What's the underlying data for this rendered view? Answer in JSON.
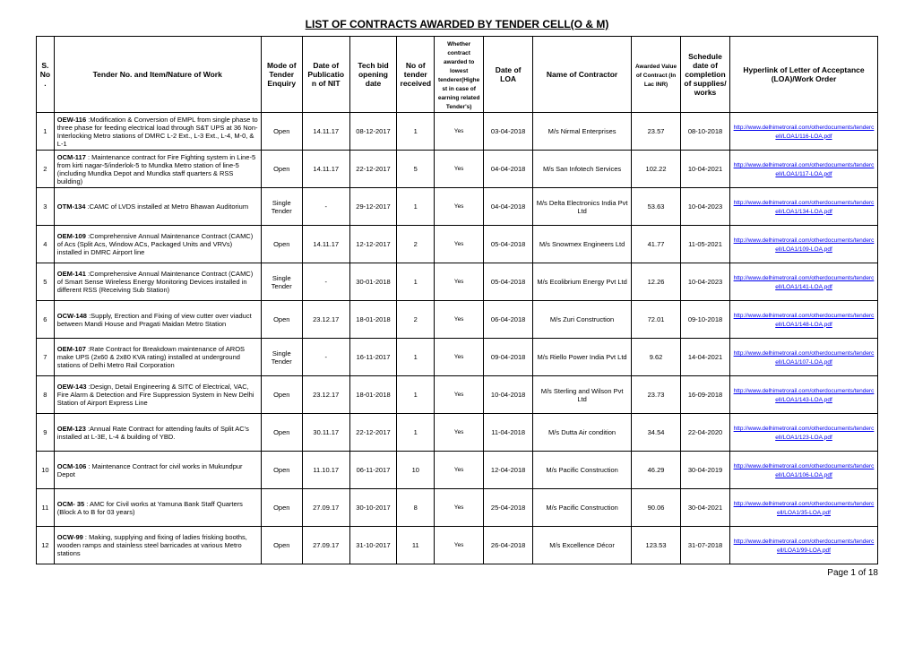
{
  "title": "LIST OF CONTRACTS AWARDED BY TENDER CELL(O & M)",
  "footer": "Page 1 of 18",
  "columns": {
    "sno": "S.No.",
    "desc": "Tender No. and Item/Nature of Work",
    "mode": "Mode of Tender Enquiry",
    "pubnit": "Date of Publication of NIT",
    "bid": "Tech bid opening date",
    "no": "No of tender received",
    "awarded": "Whether contract awarded to lowest tenderer(Highest in case of earning related Tender's)",
    "loa": "Date of LOA",
    "contractor": "Name of Contractor",
    "value": "Awarded Value of Contract (In Lac INR)",
    "sched": "Schedule date of completion of supplies/ works",
    "link": "Hyperlink of Letter of Acceptance (LOA)/Work Order"
  },
  "link_base": "http://www.delhimetrorail.com/otherdocuments/tendercell/LOA1/",
  "rows": [
    {
      "sno": "1",
      "desc_bold": "OEW-116",
      "desc": " :Modification & Conversion of EMPL from single phase to three phase for feeding electrical load through S&T UPS at 36 Non-Interlocking Metro stations of DMRC L-2 Ext., L-3 Ext., L-4, M-0, & L-1",
      "mode": "Open",
      "pubnit": "14.11.17",
      "bid": "08-12-2017",
      "no": "1",
      "awarded": "Yes",
      "loa": "03-04-2018",
      "contractor": "M/s Nirmal Enterprises",
      "value": "23.57",
      "sched": "08-10-2018",
      "link": "116-LOA.pdf"
    },
    {
      "sno": "2",
      "desc_bold": "OCM-117",
      "desc": " : Maintenance contract for Fire Fighting system in Line-5 from kirti nagar-5/inderlok-5 to Mundka Metro station of line-5 (including Mundka Depot and Mundka staff quarters & RSS building)",
      "mode": "Open",
      "pubnit": "14.11.17",
      "bid": "22-12-2017",
      "no": "5",
      "awarded": "Yes",
      "loa": "04-04-2018",
      "contractor": "M/s San Infotech Services",
      "value": "102.22",
      "sched": "10-04-2021",
      "link": "117-LOA.pdf"
    },
    {
      "sno": "3",
      "desc_bold": "OTM-134",
      "desc": " :CAMC of LVDS installed at Metro Bhawan Auditorium",
      "mode": "Single Tender",
      "pubnit": "-",
      "bid": "29-12-2017",
      "no": "1",
      "awarded": "Yes",
      "loa": "04-04-2018",
      "contractor": "M/s Delta Electronics India Pvt Ltd",
      "value": "53.63",
      "sched": "10-04-2023",
      "link": "134-LOA.pdf"
    },
    {
      "sno": "4",
      "desc_bold": "OEM-109",
      "desc": " :Comprehensive Annual Maintenance Contract (CAMC) of Acs (Split Acs, Window ACs, Packaged Units and VRVs) installed in DMRC Airport line",
      "mode": "Open",
      "pubnit": "14.11.17",
      "bid": "12-12-2017",
      "no": "2",
      "awarded": "Yes",
      "loa": "05-04-2018",
      "contractor": "M/s Snowmex Engineers Ltd",
      "value": "41.77",
      "sched": "11-05-2021",
      "link": "109-LOA.pdf"
    },
    {
      "sno": "5",
      "desc_bold": "OEM-141",
      "desc": " :Comprehensive Annual Maintenance Contract (CAMC) of Smart Sense Wireless Energy Monitoring Devices installed in different RSS (Receiving Sub Station)",
      "mode": "Single Tender",
      "pubnit": "-",
      "bid": "30-01-2018",
      "no": "1",
      "awarded": "Yes",
      "loa": "05-04-2018",
      "contractor": "M/s Ecolibrium Energy Pvt Ltd",
      "value": "12.26",
      "sched": "10-04-2023",
      "link": "141-LOA.pdf"
    },
    {
      "sno": "6",
      "desc_bold": "OCW-148",
      "desc": " :Supply, Erection and Fixing of view cutter over viaduct between Mandi House and Pragati Maidan Metro Station",
      "mode": "Open",
      "pubnit": "23.12.17",
      "bid": "18-01-2018",
      "no": "2",
      "awarded": "Yes",
      "loa": "06-04-2018",
      "contractor": "M/s Zuri Construction",
      "value": "72.01",
      "sched": "09-10-2018",
      "link": "148-LOA.pdf"
    },
    {
      "sno": "7",
      "desc_bold": "OEM-107",
      "desc": " :Rate Contract for Breakdown maintenance of AROS make UPS (2x60 & 2x80 KVA rating) installed at underground stations of Delhi Metro Rail Corporation",
      "mode": "Single Tender",
      "pubnit": "-",
      "bid": "16-11-2017",
      "no": "1",
      "awarded": "Yes",
      "loa": "09-04-2018",
      "contractor": "M/s Riello Power India Pvt Ltd",
      "value": "9.62",
      "sched": "14-04-2021",
      "link": "107-LOA.pdf"
    },
    {
      "sno": "8",
      "desc_bold": "OEW-143",
      "desc": " :Design, Detail Engineering & SITC of Electrical, VAC, Fire Alarm & Detection and Fire Suppression System in New Delhi Station of Airport Express Line",
      "mode": "Open",
      "pubnit": "23.12.17",
      "bid": "18-01-2018",
      "no": "1",
      "awarded": "Yes",
      "loa": "10-04-2018",
      "contractor": "M/s Sterling and Wilson Pvt Ltd",
      "value": "23.73",
      "sched": "16-09-2018",
      "link": "143-LOA.pdf"
    },
    {
      "sno": "9",
      "desc_bold": "OEM-123",
      "desc": " :Annual Rate Contract for attending faults of Split AC's installed at L-3E, L-4 & building of YBD.",
      "mode": "Open",
      "pubnit": "30.11.17",
      "bid": "22-12-2017",
      "no": "1",
      "awarded": "Yes",
      "loa": "11-04-2018",
      "contractor": "M/s Dutta Air condition",
      "value": "34.54",
      "sched": "22-04-2020",
      "link": "123-LOA.pdf"
    },
    {
      "sno": "10",
      "desc_bold": "OCM-106",
      "desc": " : Maintenance Contract for civil works in Mukundpur Depot",
      "mode": "Open",
      "pubnit": "11.10.17",
      "bid": "06-11-2017",
      "no": "10",
      "awarded": "Yes",
      "loa": "12-04-2018",
      "contractor": "M/s Pacific Construction",
      "value": "46.29",
      "sched": "30-04-2019",
      "link": "106-LOA.pdf"
    },
    {
      "sno": "11",
      "desc_bold": "OCM- 35",
      "desc": " : AMC for Civil works at Yamuna Bank Staff Quarters (Block A to B for 03 years)",
      "mode": "Open",
      "pubnit": "27.09.17",
      "bid": "30-10-2017",
      "no": "8",
      "awarded": "Yes",
      "loa": "25-04-2018",
      "contractor": "M/s Pacific Construction",
      "value": "90.06",
      "sched": "30-04-2021",
      "link": "35-LOA.pdf"
    },
    {
      "sno": "12",
      "desc_bold": "OCW-99",
      "desc": " : Making, supplying and fixing of ladies frisking booths, wooden ramps and stainless steel barricades at various Metro stations",
      "mode": "Open",
      "pubnit": "27.09.17",
      "bid": "31-10-2017",
      "no": "11",
      "awarded": "Yes",
      "loa": "26-04-2018",
      "contractor": "M/s Excellence Décor",
      "value": "123.53",
      "sched": "31-07-2018",
      "link": "99-LOA.pdf"
    }
  ]
}
